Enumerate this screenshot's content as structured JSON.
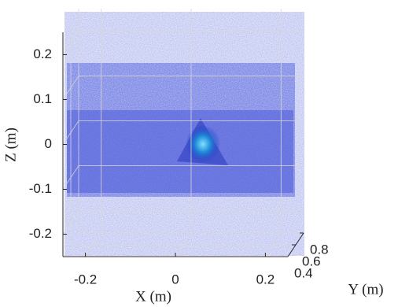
{
  "chart_data": {
    "type": "scatter3d",
    "xlabel": "X (m)",
    "ylabel": "Y (m)",
    "zlabel": "Z (m)",
    "xlim": [
      -0.25,
      0.25
    ],
    "xticks": [
      -0.2,
      0,
      0.2
    ],
    "ylim": [
      0.4,
      0.8
    ],
    "yticks": [
      0.4,
      0.6,
      0.8
    ],
    "zlim": [
      -0.25,
      0.25
    ],
    "zticks": [
      -0.2,
      -0.1,
      0,
      0.1,
      0.2
    ],
    "grid": true,
    "color": "#1f2fd0"
  }
}
